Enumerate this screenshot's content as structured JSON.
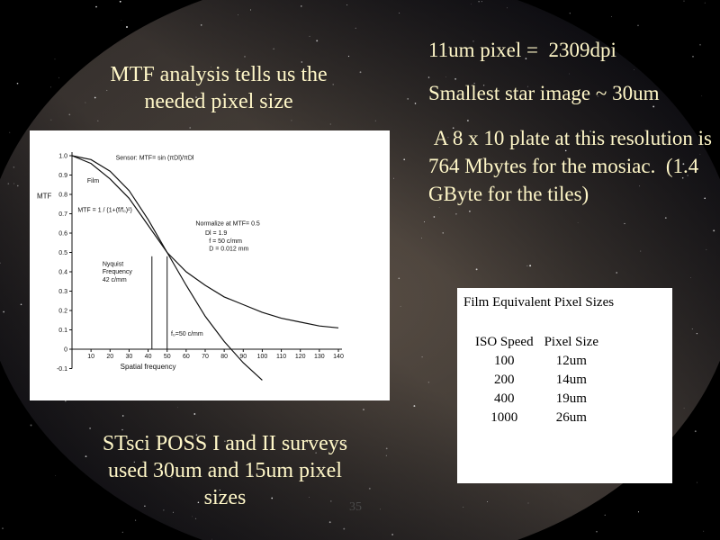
{
  "slide": {
    "title": "MTF analysis tells us the needed pixel size",
    "caption": "STsci POSS I and II surveys used 30um and 15um pixel sizes",
    "notes": [
      "11um pixel =  2309dpi",
      "Smallest star image ~ 30um",
      " A 8 x 10 plate at this resolution is 764 Mbytes for the mosiac.  (1.4 GByte for the tiles)"
    ],
    "page_number": "35"
  },
  "table": {
    "title": "Film Equivalent Pixel Sizes",
    "columns": [
      "ISO Speed",
      "Pixel Size"
    ],
    "rows": [
      [
        "100",
        "12um"
      ],
      [
        "200",
        "14um"
      ],
      [
        "400",
        "19um"
      ],
      [
        "1000",
        "26um"
      ]
    ]
  },
  "chart_data": {
    "type": "line",
    "xlabel": "Spatial frequency",
    "ylabel": "MTF",
    "x": [
      0,
      10,
      20,
      30,
      40,
      50,
      60,
      70,
      80,
      90,
      100,
      110,
      120,
      130,
      140
    ],
    "series": [
      {
        "name": "Sensor: MTF= sin (πDl)/πDl",
        "color": "#111111",
        "values": [
          1.0,
          0.98,
          0.92,
          0.82,
          0.67,
          0.5,
          0.33,
          0.17,
          0.04,
          -0.07,
          -0.16,
          null,
          null,
          null,
          null
        ]
      },
      {
        "name": "Film",
        "color": "#111111",
        "values": [
          1.0,
          0.96,
          0.88,
          0.78,
          0.64,
          0.5,
          0.4,
          0.33,
          0.27,
          0.23,
          0.19,
          0.16,
          0.14,
          0.12,
          0.11
        ]
      }
    ],
    "annotations": [
      "MTF = 1 / (1+(f/f₀)²)",
      "Normalize at MTF= 0.5",
      "Dl = 1.9",
      "f = 50 c/mm",
      "D = 0.012 mm",
      "Nyquist",
      "Frequency",
      "42 c/mm",
      "f₀=50 c/mm"
    ],
    "vlines": [
      42,
      50
    ],
    "xlim": [
      0,
      140
    ],
    "ylim": [
      -0.2,
      1.0
    ],
    "xticks": [
      10,
      20,
      30,
      40,
      50,
      60,
      70,
      80,
      90,
      100,
      110,
      120,
      130,
      140
    ],
    "yticks": [
      {
        "value": 1.0,
        "label": "1.0"
      },
      0.9,
      0.8,
      0.7,
      0.6,
      0.5,
      0.4,
      0.3,
      0.2,
      0.1,
      0,
      {
        "value": -0.1,
        "label": "-0.1"
      }
    ]
  }
}
